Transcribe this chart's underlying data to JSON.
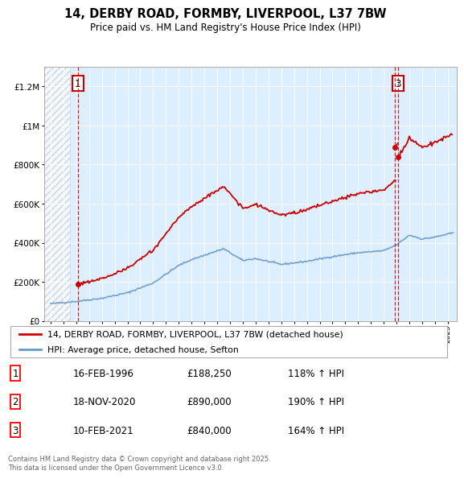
{
  "title": "14, DERBY ROAD, FORMBY, LIVERPOOL, L37 7BW",
  "subtitle": "Price paid vs. HM Land Registry's House Price Index (HPI)",
  "legend_label_red": "14, DERBY ROAD, FORMBY, LIVERPOOL, L37 7BW (detached house)",
  "legend_label_blue": "HPI: Average price, detached house, Sefton",
  "transactions": [
    {
      "num": 1,
      "date": "16-FEB-1996",
      "price": 188250,
      "hpi_pct": "118% ↑ HPI",
      "year": 1996.12
    },
    {
      "num": 2,
      "date": "18-NOV-2020",
      "price": 890000,
      "hpi_pct": "190% ↑ HPI",
      "year": 2020.88
    },
    {
      "num": 3,
      "date": "10-FEB-2021",
      "price": 840000,
      "hpi_pct": "164% ↑ HPI",
      "year": 2021.12
    }
  ],
  "footnote": "Contains HM Land Registry data © Crown copyright and database right 2025.\nThis data is licensed under the Open Government Licence v3.0.",
  "red_color": "#cc0000",
  "blue_color": "#6699cc",
  "bg_plot": "#ddeeff",
  "grid_color": "#ffffff",
  "ylim": [
    0,
    1300000
  ],
  "xlim_start": 1993.5,
  "xlim_end": 2025.7
}
